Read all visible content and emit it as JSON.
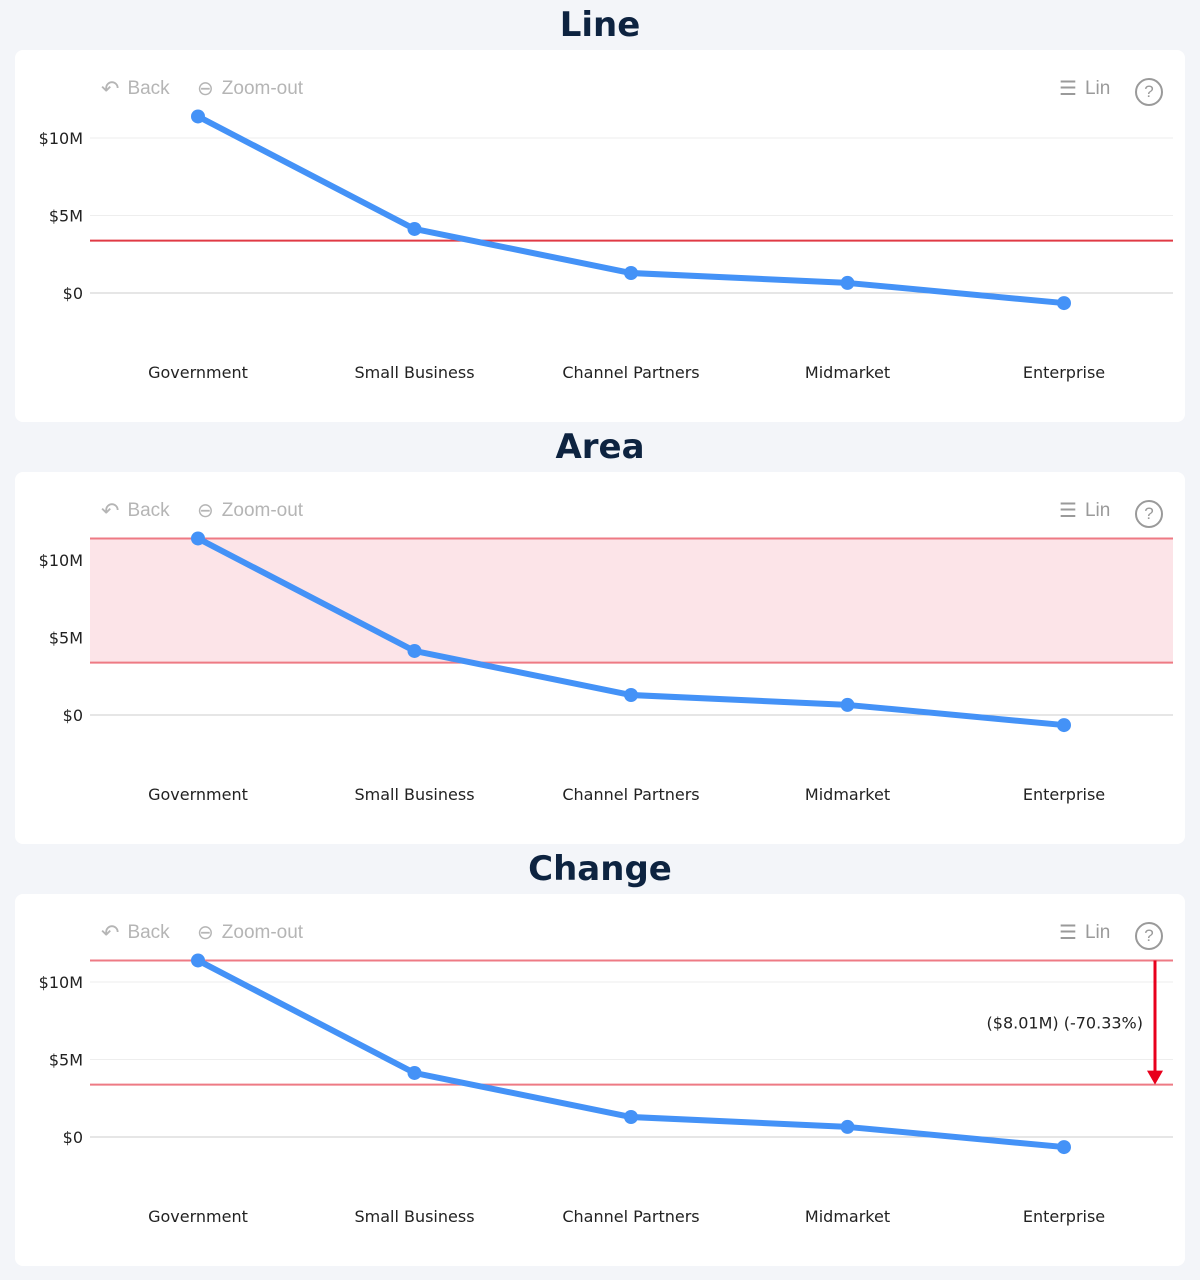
{
  "toolbar": {
    "back": "Back",
    "zoom_out": "Zoom-out",
    "scale": "Lin"
  },
  "chart_data": [
    {
      "type": "line",
      "title": "Line",
      "categories": [
        "Government",
        "Small Business",
        "Channel Partners",
        "Midmarket",
        "Enterprise"
      ],
      "values": [
        11.39,
        4.13,
        1.29,
        0.65,
        -0.65
      ],
      "unit": "$M",
      "yticks": [
        "$0",
        "$5M",
        "$10M"
      ],
      "ytick_values": [
        0,
        5,
        10
      ],
      "ylim": [
        -3,
        13
      ],
      "reference_line": 3.38,
      "colors": {
        "series": "#4492f7",
        "reference": "#e03a45"
      }
    },
    {
      "type": "area",
      "title": "Area",
      "categories": [
        "Government",
        "Small Business",
        "Channel Partners",
        "Midmarket",
        "Enterprise"
      ],
      "values": [
        11.39,
        4.13,
        1.29,
        0.65,
        -0.65
      ],
      "unit": "$M",
      "yticks": [
        "$0",
        "$5M",
        "$10M"
      ],
      "ytick_values": [
        0,
        5,
        10
      ],
      "ylim": [
        -3,
        13
      ],
      "band": [
        3.38,
        11.39
      ],
      "colors": {
        "series": "#4492f7",
        "reference": "#ee7a84",
        "band": "#fce4e8"
      }
    },
    {
      "type": "line",
      "title": "Change",
      "categories": [
        "Government",
        "Small Business",
        "Channel Partners",
        "Midmarket",
        "Enterprise"
      ],
      "values": [
        11.39,
        4.13,
        1.29,
        0.65,
        -0.65
      ],
      "unit": "$M",
      "yticks": [
        "$0",
        "$5M",
        "$10M"
      ],
      "ytick_values": [
        0,
        5,
        10
      ],
      "ylim": [
        -3,
        13
      ],
      "change": {
        "from": 11.39,
        "to": 3.38,
        "label": "($8.01M) (-70.33%)"
      },
      "colors": {
        "series": "#4492f7",
        "reference": "#ee7a84",
        "arrow": "#e8001c"
      }
    }
  ]
}
